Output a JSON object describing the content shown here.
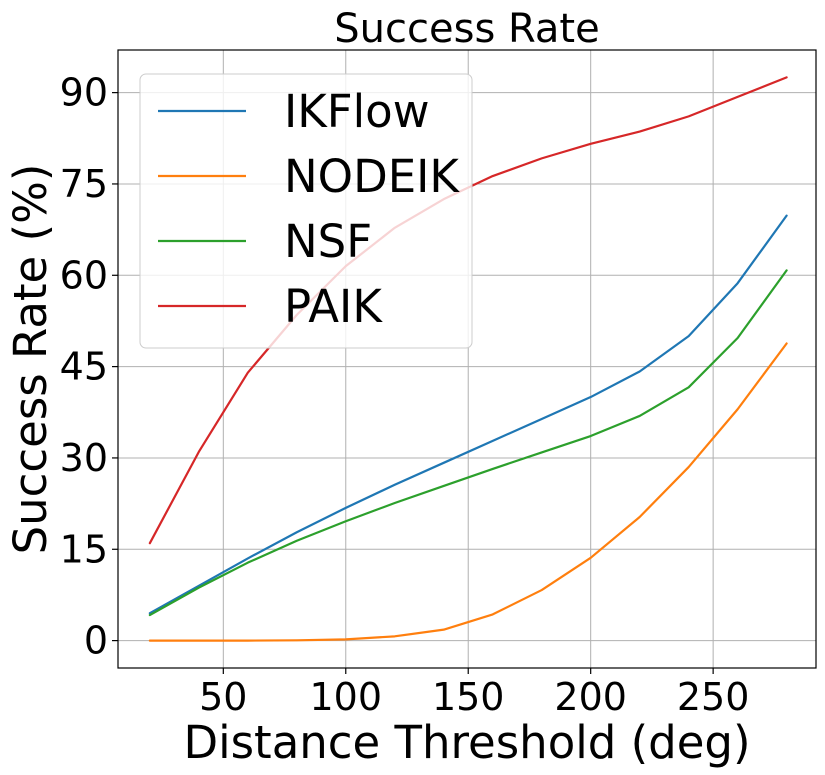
{
  "chart_data": {
    "type": "line",
    "title": "Success Rate",
    "xlabel": "Distance Threshold (deg)",
    "ylabel": "Success Rate (%)",
    "xlim": [
      7,
      292
    ],
    "ylim": [
      -4.5,
      97
    ],
    "xticks": [
      50,
      100,
      150,
      200,
      250
    ],
    "yticks": [
      0,
      15,
      30,
      45,
      60,
      75,
      90
    ],
    "grid": true,
    "legend_position": "top-left",
    "x": [
      20,
      40,
      60,
      80,
      100,
      120,
      140,
      160,
      180,
      200,
      220,
      240,
      260,
      280
    ],
    "series": [
      {
        "name": "IKFlow",
        "color": "#1f77b4",
        "values": [
          4.5,
          9.0,
          13.5,
          17.8,
          21.8,
          25.6,
          29.2,
          32.8,
          36.4,
          40.0,
          44.2,
          50.0,
          58.7,
          69.8
        ]
      },
      {
        "name": "NODEIK",
        "color": "#ff7f0e",
        "values": [
          0.0,
          0.0,
          0.0,
          0.05,
          0.2,
          0.7,
          1.8,
          4.3,
          8.3,
          13.6,
          20.3,
          28.5,
          38.0,
          48.8
        ]
      },
      {
        "name": "NSF",
        "color": "#2ca02c",
        "values": [
          4.2,
          8.7,
          12.8,
          16.4,
          19.6,
          22.6,
          25.4,
          28.2,
          30.9,
          33.6,
          36.9,
          41.6,
          49.7,
          60.8
        ]
      },
      {
        "name": "PAIK",
        "color": "#d62728",
        "values": [
          16.0,
          31.0,
          44.0,
          53.5,
          61.5,
          67.8,
          72.5,
          76.3,
          79.2,
          81.6,
          83.6,
          86.1,
          89.3,
          92.5
        ]
      }
    ]
  }
}
